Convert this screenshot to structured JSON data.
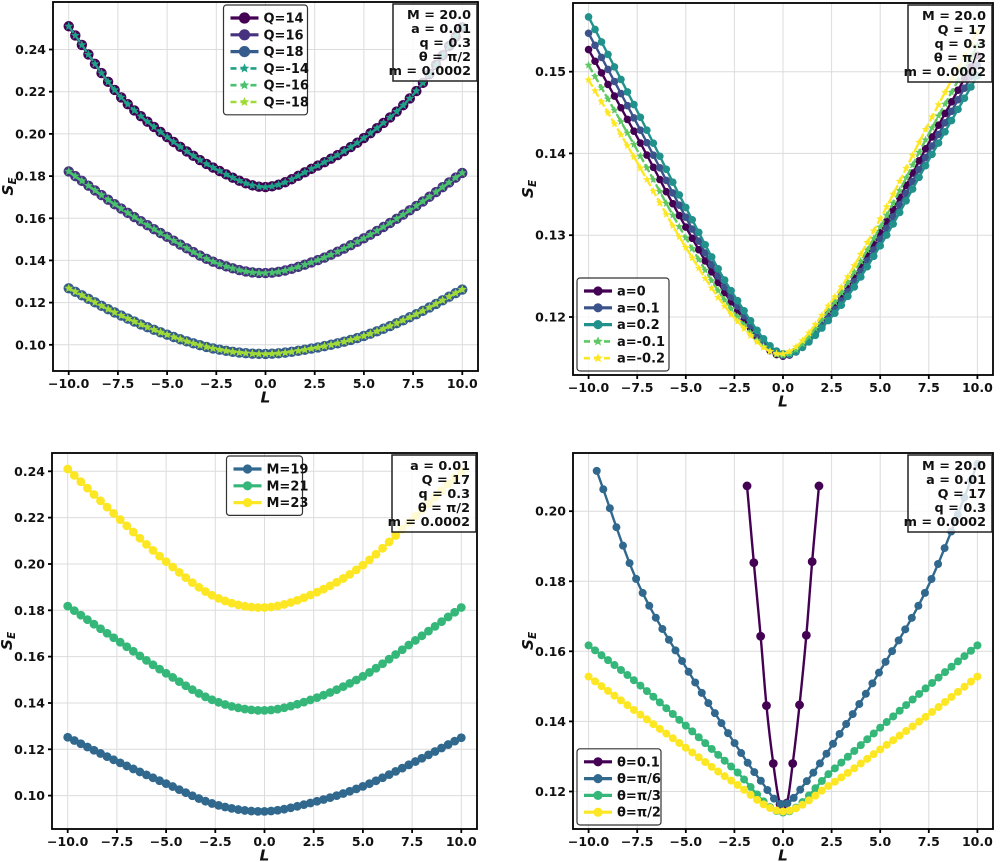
{
  "figure": {
    "background": "#ffffff",
    "grid_color": "#dcdcdc",
    "spine_color": "#000000",
    "text_color": "#111111",
    "box_fill": "rgba(255,255,255,0.8)"
  },
  "chart_data": [
    {
      "type": "line",
      "position": "top-left",
      "xlabel": "L",
      "ylabel_main": "S",
      "ylabel_sub": "E",
      "xlim": [
        -10.8,
        10.8
      ],
      "ylim": [
        0.0876,
        0.2625
      ],
      "grid": true,
      "xtick_values": [
        -10,
        -7.5,
        -5,
        -2.5,
        0,
        2.5,
        5,
        7.5,
        10
      ],
      "xtick_labels": [
        "−10.0",
        "−7.5",
        "−5.0",
        "−2.5",
        "0.0",
        "2.5",
        "5.0",
        "7.5",
        "10.0"
      ],
      "ytick_values": [
        0.1,
        0.12,
        0.14,
        0.16,
        0.18,
        0.2,
        0.22,
        0.24
      ],
      "ytick_labels": [
        "0.10",
        "0.12",
        "0.14",
        "0.16",
        "0.18",
        "0.20",
        "0.22",
        "0.24"
      ],
      "x_key": [
        -10,
        -7.5,
        -5,
        -2.5,
        0,
        2.5,
        5,
        7.5,
        10
      ],
      "legend": {
        "loc": "upper center"
      },
      "param_box": [
        "M = 20.0",
        "a = 0.01",
        "q = 0.3",
        "θ = π/2",
        "m = 0.0002"
      ],
      "series": [
        {
          "name": "Q=14",
          "color": "#440154",
          "marker": "circle",
          "line": "solid",
          "x_start": -10,
          "x_end": 10,
          "n_markers": 61,
          "y": [
            0.251,
            0.219,
            0.1985,
            0.1832,
            0.1748,
            0.1842,
            0.198,
            0.2185,
            0.2505
          ]
        },
        {
          "name": "Q=16",
          "color": "#46327e",
          "marker": "circle",
          "line": "solid",
          "x_start": -10,
          "x_end": 10,
          "n_markers": 61,
          "y": [
            0.1822,
            0.1656,
            0.1512,
            0.1388,
            0.134,
            0.1396,
            0.1505,
            0.1648,
            0.1815
          ]
        },
        {
          "name": "Q=18",
          "color": "#365c8d",
          "marker": "circle",
          "line": "solid",
          "x_start": -10,
          "x_end": 10,
          "n_markers": 61,
          "y": [
            0.1268,
            0.1146,
            0.1048,
            0.098,
            0.0957,
            0.0985,
            0.1042,
            0.1138,
            0.1262
          ]
        },
        {
          "name": "Q=-14",
          "color": "#1fa187",
          "marker": "star",
          "line": "dashed",
          "x_start": -10,
          "x_end": 10,
          "n_markers": 61,
          "y": [
            0.251,
            0.219,
            0.1985,
            0.1832,
            0.1748,
            0.1842,
            0.198,
            0.2185,
            0.2505
          ]
        },
        {
          "name": "Q=-16",
          "color": "#4ac16d",
          "marker": "star",
          "line": "dashed",
          "x_start": -10,
          "x_end": 10,
          "n_markers": 61,
          "y": [
            0.1822,
            0.1656,
            0.1512,
            0.1388,
            0.134,
            0.1396,
            0.1505,
            0.1648,
            0.1815
          ]
        },
        {
          "name": "Q=-18",
          "color": "#a0da39",
          "marker": "star",
          "line": "dashed",
          "x_start": -10,
          "x_end": 10,
          "n_markers": 61,
          "y": [
            0.1268,
            0.1146,
            0.1048,
            0.098,
            0.0957,
            0.0985,
            0.1042,
            0.1138,
            0.1262
          ]
        }
      ]
    },
    {
      "type": "line",
      "position": "top-right",
      "xlabel": "L",
      "ylabel_main": "S",
      "ylabel_sub": "E",
      "xlim": [
        -10.8,
        10.8
      ],
      "ylim": [
        0.1129,
        0.1584
      ],
      "grid": true,
      "xtick_values": [
        -10,
        -7.5,
        -5,
        -2.5,
        0,
        2.5,
        5,
        7.5,
        10
      ],
      "xtick_labels": [
        "−10.0",
        "−7.5",
        "−5.0",
        "−2.5",
        "0.0",
        "2.5",
        "5.0",
        "7.5",
        "10.0"
      ],
      "ytick_values": [
        0.12,
        0.13,
        0.14,
        0.15
      ],
      "ytick_labels": [
        "0.12",
        "0.13",
        "0.14",
        "0.15"
      ],
      "x_key": [
        -10,
        -7.5,
        -5,
        -2.5,
        0,
        2.5,
        5,
        7.5,
        10
      ],
      "legend": {
        "loc": "lower left"
      },
      "param_box": [
        "M = 20.0",
        "Q = 17",
        "q = 0.3",
        "θ = π/2",
        "m = 0.0002"
      ],
      "series": [
        {
          "name": "a=0",
          "color": "#440154",
          "marker": "circle",
          "line": "solid",
          "x_start": -10,
          "x_end": 10,
          "n_markers": 61,
          "y": [
            0.1527,
            0.142,
            0.131,
            0.1213,
            0.1152,
            0.1209,
            0.1303,
            0.1413,
            0.152
          ]
        },
        {
          "name": "a=0.1",
          "color": "#3b528b",
          "marker": "circle",
          "line": "solid",
          "x_start": -10,
          "x_end": 10,
          "n_markers": 61,
          "y": [
            0.1547,
            0.1436,
            0.1322,
            0.1219,
            0.1153,
            0.1204,
            0.1295,
            0.1402,
            0.1508
          ]
        },
        {
          "name": "a=0.2",
          "color": "#21918c",
          "marker": "circle",
          "line": "solid",
          "x_start": -10,
          "x_end": 10,
          "n_markers": 61,
          "y": [
            0.1567,
            0.1452,
            0.1334,
            0.1226,
            0.1155,
            0.12,
            0.1287,
            0.1392,
            0.1495
          ]
        },
        {
          "name": "a=-0.1",
          "color": "#5ec962",
          "marker": "star",
          "line": "dashed",
          "x_start": -10,
          "x_end": 10,
          "n_markers": 61,
          "y": [
            0.1508,
            0.1404,
            0.1297,
            0.1205,
            0.1153,
            0.1213,
            0.131,
            0.1424,
            0.1532
          ]
        },
        {
          "name": "a=-0.2",
          "color": "#fde725",
          "marker": "star",
          "line": "dashed",
          "x_start": -10,
          "x_end": 10,
          "n_markers": 61,
          "y": [
            0.149,
            0.1389,
            0.1285,
            0.1199,
            0.1155,
            0.1219,
            0.132,
            0.1437,
            0.1549
          ]
        }
      ]
    },
    {
      "type": "line",
      "position": "bottom-left",
      "xlabel": "L",
      "ylabel_main": "S",
      "ylabel_sub": "E",
      "xlim": [
        -10.8,
        10.8
      ],
      "ylim": [
        0.0856,
        0.2479
      ],
      "grid": true,
      "xtick_values": [
        -10,
        -7.5,
        -5,
        -2.5,
        0,
        2.5,
        5,
        7.5,
        10
      ],
      "xtick_labels": [
        "−10.0",
        "−7.5",
        "−5.0",
        "−2.5",
        "0.0",
        "2.5",
        "5.0",
        "7.5",
        "10.0"
      ],
      "ytick_values": [
        0.1,
        0.12,
        0.14,
        0.16,
        0.18,
        0.2,
        0.22,
        0.24
      ],
      "ytick_labels": [
        "0.10",
        "0.12",
        "0.14",
        "0.16",
        "0.18",
        "0.20",
        "0.22",
        "0.24"
      ],
      "x_key": [
        -10,
        -7.5,
        -5,
        -2.5,
        0,
        2.5,
        5,
        7.5,
        10
      ],
      "legend": {
        "loc": "upper center"
      },
      "param_box": [
        "a = 0.01",
        "Q = 17",
        "q = 0.3",
        "θ = π/2",
        "m = 0.0002"
      ],
      "series": [
        {
          "name": "M=19",
          "color": "#31688e",
          "marker": "circle",
          "line": "solid",
          "x_start": -10,
          "x_end": 10,
          "n_markers": 61,
          "y": [
            0.1252,
            0.1148,
            0.1052,
            0.0962,
            0.0932,
            0.0972,
            0.104,
            0.114,
            0.125
          ]
        },
        {
          "name": "M=21",
          "color": "#35b779",
          "marker": "circle",
          "line": "solid",
          "x_start": -10,
          "x_end": 10,
          "n_markers": 61,
          "y": [
            0.1818,
            0.1672,
            0.1528,
            0.1408,
            0.1368,
            0.1418,
            0.1515,
            0.166,
            0.1812
          ]
        },
        {
          "name": "M=23",
          "color": "#fde725",
          "marker": "circle",
          "line": "solid",
          "x_start": -10,
          "x_end": 10,
          "n_markers": 61,
          "y": [
            0.241,
            0.2205,
            0.201,
            0.1858,
            0.1812,
            0.1872,
            0.1995,
            0.2192,
            0.24
          ]
        }
      ]
    },
    {
      "type": "line",
      "position": "bottom-right",
      "xlabel": "L",
      "ylabel_main": "S",
      "ylabel_sub": "E",
      "xlim": [
        -10.8,
        10.8
      ],
      "ylim": [
        0.1093,
        0.2166
      ],
      "grid": true,
      "xtick_values": [
        -10,
        -7.5,
        -5,
        -2.5,
        0,
        2.5,
        5,
        7.5,
        10
      ],
      "xtick_labels": [
        "−10.0",
        "−7.5",
        "−5.0",
        "−2.5",
        "0.0",
        "2.5",
        "5.0",
        "7.5",
        "10.0"
      ],
      "ytick_values": [
        0.12,
        0.14,
        0.16,
        0.18,
        0.2
      ],
      "ytick_labels": [
        "0.12",
        "0.14",
        "0.16",
        "0.18",
        "0.20"
      ],
      "x_key": [
        -10,
        -7.5,
        -5,
        -2.5,
        0,
        2.5,
        5,
        7.5,
        10
      ],
      "legend": {
        "loc": "lower left"
      },
      "param_box": [
        "M = 20.0",
        "a = 0.01",
        "Q = 17",
        "q = 0.3",
        "m = 0.0002"
      ],
      "series": [
        {
          "name": "θ=0.1",
          "color": "#440154",
          "marker": "circle",
          "line": "solid",
          "x": [
            -1.85,
            -1.5,
            -1.15,
            -0.85,
            -0.5,
            -0.15,
            0.2,
            0.5,
            0.85,
            1.2,
            1.5,
            1.85
          ],
          "y": [
            0.2072,
            0.1853,
            0.1643,
            0.1445,
            0.128,
            0.1164,
            0.1167,
            0.128,
            0.1447,
            0.1646,
            0.1856,
            0.2072
          ]
        },
        {
          "name": "θ=π/6",
          "color": "#31688e",
          "marker": "circle",
          "line": "solid",
          "x_start": -9.58,
          "x_end": 10,
          "n_markers": 59,
          "x_key": [
            -9.58,
            -7.5,
            -5,
            -2.5,
            -1.2,
            0,
            1.2,
            2.5,
            5,
            7.5,
            10
          ],
          "y": [
            0.2115,
            0.18,
            0.1555,
            0.1339,
            0.1235,
            0.1163,
            0.1228,
            0.133,
            0.1545,
            0.179,
            0.2135
          ]
        },
        {
          "name": "θ=π/3",
          "color": "#35b779",
          "marker": "circle",
          "line": "solid",
          "x_start": -10,
          "x_end": 10,
          "n_markers": 61,
          "y": [
            0.1617,
            0.151,
            0.1388,
            0.1263,
            0.114,
            0.1258,
            0.1382,
            0.1502,
            0.1617
          ]
        },
        {
          "name": "θ=π/2",
          "color": "#fde725",
          "marker": "circle",
          "line": "solid",
          "x_start": -10,
          "x_end": 10,
          "n_markers": 61,
          "y": [
            0.1528,
            0.1426,
            0.1325,
            0.1225,
            0.1143,
            0.1222,
            0.132,
            0.142,
            0.1528
          ]
        }
      ]
    }
  ]
}
